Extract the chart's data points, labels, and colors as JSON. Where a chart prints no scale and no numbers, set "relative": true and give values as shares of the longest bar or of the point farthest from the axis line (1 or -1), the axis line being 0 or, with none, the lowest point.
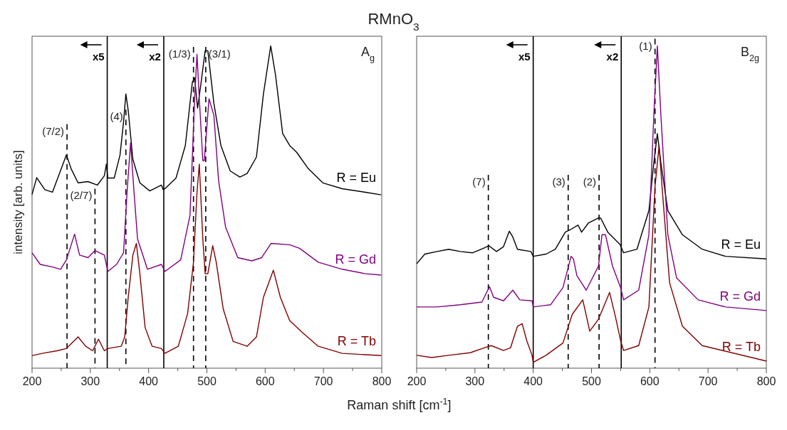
{
  "chart_data": [
    {
      "type": "line",
      "title": "RMnO$_{3}$",
      "ylabel": "intensity [arb. units]",
      "relative": true,
      "xlim": [
        200,
        800
      ],
      "xticks": [
        200,
        {
          "value": 250,
          "label": null
        },
        300,
        {
          "value": 350,
          "label": null
        },
        400,
        {
          "value": 450,
          "label": null
        },
        500,
        {
          "value": 550,
          "label": null
        },
        600,
        {
          "value": 650,
          "label": null
        },
        700,
        {
          "value": 750,
          "label": null
        },
        800
      ],
      "tick_labels": "x",
      "marker": "none",
      "line_style": "solid",
      "annotations": [
        "A$_{g}$",
        {
          "text": "(7/2)",
          "x": 260,
          "y": 0.735
        },
        {
          "text": "(2/7)",
          "x": 308,
          "y": 0.535
        },
        {
          "text": "(4)",
          "x": 361,
          "y": 0.78
        },
        {
          "text": "(1/3)",
          "x": 477,
          "y": 0.975
        },
        {
          "text": "(3/1)",
          "x": 498,
          "y": 0.975
        }
      ],
      "ref_lines": [
        {
          "axis": "x",
          "value": 260,
          "line_style": "dashed",
          "color": "#000000"
        },
        {
          "axis": "x",
          "value": 308,
          "line_style": "dashed",
          "color": "#000000"
        },
        {
          "axis": "x",
          "value": 329,
          "label": "x5",
          "line_style": "solid",
          "color": "#000000"
        },
        {
          "axis": "x",
          "value": 361,
          "line_style": "dashed",
          "color": "#000000"
        },
        {
          "axis": "x",
          "value": 426,
          "label": "x2",
          "line_style": "solid",
          "color": "#000000"
        },
        {
          "axis": "x",
          "value": 477,
          "line_style": "dashed",
          "color": "#000000"
        },
        {
          "axis": "x",
          "value": 498,
          "line_style": "dashed",
          "color": "#000000"
        }
      ],
      "series": [
        {
          "name": "R = Eu",
          "color": "#000000",
          "x": [
            200,
            208,
            222,
            235,
            247,
            259,
            267,
            279,
            296,
            312,
            324,
            327.5,
            330,
            341,
            351,
            357,
            361,
            365,
            373,
            385,
            402,
            422,
            425,
            428,
            447,
            463,
            475,
            479,
            484,
            489,
            497,
            501.6,
            512,
            524,
            540,
            556.6,
            569,
            585,
            597,
            609.5,
            617.7,
            630,
            642,
            654,
            674,
            699,
            732,
            772,
            799
          ],
          "values": [
            0.539,
            0.591,
            0.554,
            0.546,
            0.604,
            0.662,
            0.619,
            0.575,
            0.579,
            0.568,
            0.597,
            0.633,
            0.59,
            0.59,
            0.662,
            0.764,
            0.851,
            0.8,
            0.648,
            0.575,
            0.55,
            0.568,
            0.554,
            0.557,
            0.59,
            0.691,
            0.887,
            0.901,
            0.807,
            0.872,
            0.985,
            0.985,
            0.822,
            0.691,
            0.612,
            0.593,
            0.604,
            0.655,
            0.851,
            1.0,
            0.91,
            0.728,
            0.691,
            0.67,
            0.619,
            0.575,
            0.557,
            0.546,
            0.538
          ]
        },
        {
          "name": "R = Gd",
          "color": "#800080",
          "x": [
            200,
            214,
            235,
            249,
            259,
            273,
            281.5,
            296,
            308,
            324,
            330,
            345,
            357,
            363,
            369,
            375,
            381,
            398,
            422,
            428,
            455,
            471,
            479,
            483,
            487,
            493,
            495.5,
            503.6,
            512,
            520,
            532,
            553,
            577,
            594,
            610,
            642,
            659,
            691,
            732,
            772,
            799
          ],
          "values": [
            0.358,
            0.322,
            0.314,
            0.307,
            0.336,
            0.416,
            0.351,
            0.343,
            0.365,
            0.351,
            0.3,
            0.322,
            0.358,
            0.546,
            0.699,
            0.546,
            0.401,
            0.307,
            0.322,
            0.3,
            0.336,
            0.474,
            0.836,
            0.974,
            0.836,
            0.644,
            0.644,
            0.836,
            0.785,
            0.583,
            0.438,
            0.343,
            0.333,
            0.343,
            0.387,
            0.383,
            0.372,
            0.329,
            0.307,
            0.293,
            0.289
          ]
        },
        {
          "name": "R = Tb",
          "color": "#800000",
          "x": [
            200,
            218,
            243,
            259,
            279,
            292,
            304,
            314,
            324,
            330,
            353,
            359,
            365,
            373,
            379,
            385,
            394,
            406,
            422,
            428,
            451,
            467,
            477,
            483,
            487,
            493,
            497,
            501.6,
            510,
            516,
            528,
            545,
            569,
            585,
            597,
            614,
            626,
            642,
            663,
            691,
            732,
            799
          ],
          "values": [
            0.039,
            0.046,
            0.054,
            0.061,
            0.097,
            0.068,
            0.054,
            0.09,
            0.054,
            0.061,
            0.068,
            0.097,
            0.22,
            0.351,
            0.387,
            0.293,
            0.126,
            0.068,
            0.061,
            0.046,
            0.068,
            0.17,
            0.329,
            0.546,
            0.633,
            0.401,
            0.293,
            0.293,
            0.38,
            0.329,
            0.184,
            0.083,
            0.068,
            0.097,
            0.22,
            0.304,
            0.22,
            0.148,
            0.112,
            0.068,
            0.046,
            0.039
          ]
        }
      ]
    },
    {
      "type": "line",
      "xlabel": "Raman shift [cm$^{-1}$]",
      "relative": true,
      "xlim": [
        200,
        800
      ],
      "xticks": [
        200,
        {
          "value": 250,
          "label": null
        },
        300,
        {
          "value": 350,
          "label": null
        },
        400,
        {
          "value": 450,
          "label": null
        },
        500,
        {
          "value": 550,
          "label": null
        },
        600,
        {
          "value": 650,
          "label": null
        },
        700,
        {
          "value": 750,
          "label": null
        },
        800
      ],
      "tick_labels": "x",
      "marker": "none",
      "line_style": "solid",
      "annotations": [
        "B$_{2g}$",
        {
          "text": "(7)",
          "x": 323,
          "y": 0.578
        },
        {
          "text": "(3)",
          "x": 460,
          "y": 0.578
        },
        {
          "text": "(2)",
          "x": 513,
          "y": 0.578
        },
        {
          "text": "(1)",
          "x": 609,
          "y": 1.0
        }
      ],
      "ref_lines": [
        {
          "axis": "x",
          "value": 323,
          "line_style": "dashed",
          "color": "#000000"
        },
        {
          "axis": "x",
          "value": 400,
          "label": "x5",
          "line_style": "solid",
          "color": "#000000"
        },
        {
          "axis": "x",
          "value": 460,
          "line_style": "dashed",
          "color": "#000000"
        },
        {
          "axis": "x",
          "value": 513,
          "line_style": "dashed",
          "color": "#000000"
        },
        {
          "axis": "x",
          "value": 551,
          "label": "x2",
          "line_style": "solid",
          "color": "#000000"
        },
        {
          "axis": "x",
          "value": 609,
          "line_style": "dashed",
          "color": "#000000"
        }
      ],
      "series": [
        {
          "name": "R = Eu",
          "color": "#000000",
          "x": [
            200,
            214,
            235,
            255,
            275,
            296,
            316,
            324,
            337,
            349,
            359,
            365,
            373,
            396,
            400,
            422,
            438,
            455,
            463,
            477,
            483,
            495,
            512,
            515.7,
            528,
            549,
            555,
            578,
            598.5,
            607,
            613,
            619,
            631,
            656,
            690,
            730,
            800
          ],
          "values": [
            0.324,
            0.354,
            0.362,
            0.369,
            0.362,
            0.358,
            0.373,
            0.38,
            0.362,
            0.377,
            0.425,
            0.407,
            0.369,
            0.362,
            0.347,
            0.354,
            0.369,
            0.422,
            0.429,
            0.444,
            0.422,
            0.451,
            0.466,
            0.466,
            0.422,
            0.384,
            0.358,
            0.369,
            0.489,
            0.638,
            0.728,
            0.638,
            0.489,
            0.414,
            0.369,
            0.347,
            0.339
          ]
        },
        {
          "name": "R = Gd",
          "color": "#800080",
          "x": [
            200,
            235,
            275,
            312,
            320,
            325,
            332,
            349,
            365,
            377,
            398,
            400,
            430,
            451,
            465,
            469,
            475,
            491,
            512,
            518,
            524,
            536,
            550,
            555,
            581,
            598.5,
            607,
            613,
            619,
            631,
            646,
            683,
            730,
            800
          ],
          "values": [
            0.19,
            0.19,
            0.197,
            0.205,
            0.235,
            0.253,
            0.22,
            0.209,
            0.242,
            0.212,
            0.209,
            0.19,
            0.197,
            0.25,
            0.347,
            0.339,
            0.287,
            0.242,
            0.317,
            0.414,
            0.414,
            0.317,
            0.25,
            0.212,
            0.242,
            0.414,
            0.788,
            1.0,
            0.788,
            0.414,
            0.28,
            0.212,
            0.19,
            0.179
          ]
        },
        {
          "name": "R = Tb",
          "color": "#800000",
          "x": [
            200,
            226,
            255,
            292,
            316,
            328,
            349,
            361,
            373,
            381,
            389,
            398,
            400,
            422,
            451,
            467,
            485,
            497,
            512,
            531,
            541,
            550,
            555,
            581,
            598.5,
            609,
            616,
            621,
            634,
            656,
            690,
            800
          ],
          "values": [
            0.04,
            0.033,
            0.04,
            0.048,
            0.063,
            0.07,
            0.055,
            0.063,
            0.13,
            0.138,
            0.085,
            0.04,
            0.018,
            0.04,
            0.078,
            0.167,
            0.212,
            0.115,
            0.152,
            0.235,
            0.16,
            0.085,
            0.055,
            0.07,
            0.19,
            0.564,
            0.69,
            0.564,
            0.265,
            0.13,
            0.07,
            0.022
          ]
        }
      ]
    }
  ]
}
